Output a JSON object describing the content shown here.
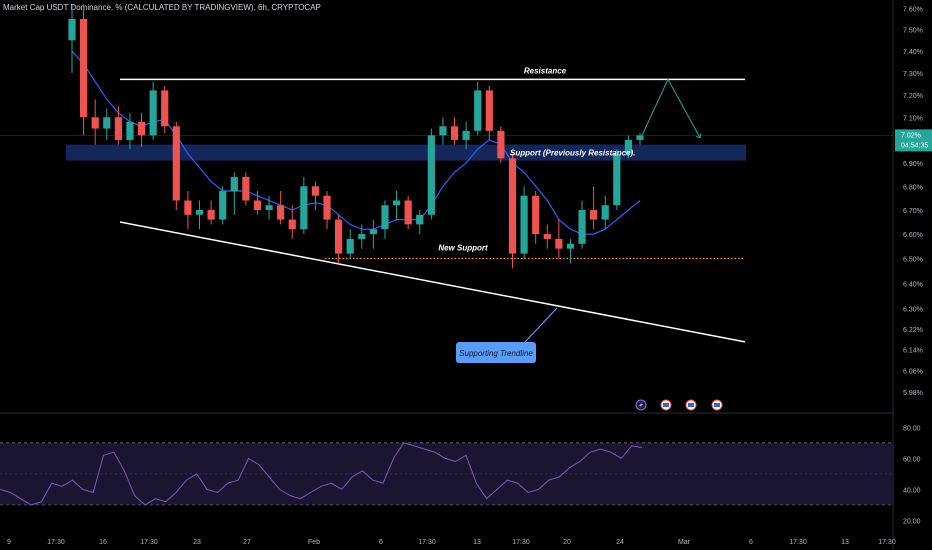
{
  "header": {
    "title": "Market Cap USDT Dominance, % (CALCULATED BY TRADINGVIEW), 6h, CRYPTOCAP"
  },
  "colors": {
    "background": "#000000",
    "up": "#26a69a",
    "down": "#ef5350",
    "moving_average": "#2962ff",
    "support_zone": "#1e3a8a",
    "trendline": "#ffffff",
    "projection": "#26a69a",
    "rsi": "#7e57c2",
    "rsi_band": "#1a1530",
    "callout": "#5b9cf6",
    "price_badge": "#26a69a",
    "axis_text": "#b2b5be"
  },
  "price_badge": {
    "value": "7.02%",
    "countdown": "04:54:35"
  },
  "annotations": {
    "resistance": "Resistance",
    "support_zone": "Support (Previously Resistance).",
    "new_support": "New Support",
    "trendline_callout": "Supporting Trendline"
  },
  "event_icons": [
    "lightning-icon",
    "flag-icon",
    "flag-icon",
    "flag-icon"
  ],
  "chart_data": [
    {
      "type": "candlestick",
      "title": "Market Cap USDT Dominance, % (CALCULATED BY TRADINGVIEW), 6h, CRYPTOCAP",
      "yaxis_scale": "log",
      "yaxis_position": "right",
      "y_ticks": [
        "7.60%",
        "7.50%",
        "7.40%",
        "7.30%",
        "7.20%",
        "7.10%",
        "7.02%",
        "6.90%",
        "6.80%",
        "6.70%",
        "6.60%",
        "6.50%",
        "6.40%",
        "6.30%",
        "6.22%",
        "6.14%",
        "6.06%",
        "5.98%"
      ],
      "x_ticks": [
        "9",
        "17:30",
        "16",
        "17:30",
        "23",
        "27",
        "Feb",
        "6",
        "17:30",
        "13",
        "17:30",
        "20",
        "24",
        "Mar",
        "6",
        "17:30",
        "13",
        "17:30"
      ],
      "candles": [
        {
          "x": "Jan 09",
          "o": 7.45,
          "h": 7.62,
          "l": 7.3,
          "c": 7.55
        },
        {
          "x": "Jan 10",
          "o": 7.55,
          "h": 7.62,
          "l": 7.02,
          "c": 7.1
        },
        {
          "x": "Jan 11",
          "o": 7.1,
          "h": 7.18,
          "l": 6.98,
          "c": 7.05
        },
        {
          "x": "Jan 12",
          "o": 7.05,
          "h": 7.14,
          "l": 7.0,
          "c": 7.1
        },
        {
          "x": "Jan 13",
          "o": 7.1,
          "h": 7.15,
          "l": 6.98,
          "c": 7.0
        },
        {
          "x": "Jan 14",
          "o": 7.0,
          "h": 7.12,
          "l": 6.96,
          "c": 7.08
        },
        {
          "x": "Jan 15",
          "o": 7.08,
          "h": 7.12,
          "l": 6.97,
          "c": 7.02
        },
        {
          "x": "Jan 16",
          "o": 7.02,
          "h": 7.26,
          "l": 7.0,
          "c": 7.22
        },
        {
          "x": "Jan 17",
          "o": 7.22,
          "h": 7.24,
          "l": 7.03,
          "c": 7.06
        },
        {
          "x": "Jan 18",
          "o": 7.06,
          "h": 7.08,
          "l": 6.7,
          "c": 6.74
        },
        {
          "x": "Jan 19",
          "o": 6.74,
          "h": 6.78,
          "l": 6.62,
          "c": 6.68
        },
        {
          "x": "Jan 20",
          "o": 6.68,
          "h": 6.74,
          "l": 6.62,
          "c": 6.7
        },
        {
          "x": "Jan 21",
          "o": 6.7,
          "h": 6.74,
          "l": 6.64,
          "c": 6.66
        },
        {
          "x": "Jan 22",
          "o": 6.66,
          "h": 6.8,
          "l": 6.64,
          "c": 6.78
        },
        {
          "x": "Jan 23",
          "o": 6.78,
          "h": 6.86,
          "l": 6.68,
          "c": 6.84
        },
        {
          "x": "Jan 24",
          "o": 6.84,
          "h": 6.86,
          "l": 6.72,
          "c": 6.74
        },
        {
          "x": "Jan 25",
          "o": 6.74,
          "h": 6.78,
          "l": 6.68,
          "c": 6.7
        },
        {
          "x": "Jan 26",
          "o": 6.7,
          "h": 6.76,
          "l": 6.66,
          "c": 6.72
        },
        {
          "x": "Jan 27",
          "o": 6.72,
          "h": 6.78,
          "l": 6.64,
          "c": 6.66
        },
        {
          "x": "Jan 28",
          "o": 6.66,
          "h": 6.72,
          "l": 6.58,
          "c": 6.62
        },
        {
          "x": "Jan 29",
          "o": 6.62,
          "h": 6.84,
          "l": 6.6,
          "c": 6.8
        },
        {
          "x": "Jan 30",
          "o": 6.8,
          "h": 6.82,
          "l": 6.7,
          "c": 6.76
        },
        {
          "x": "Jan 31",
          "o": 6.76,
          "h": 6.78,
          "l": 6.62,
          "c": 6.66
        },
        {
          "x": "Feb 01",
          "o": 6.66,
          "h": 6.68,
          "l": 6.48,
          "c": 6.52
        },
        {
          "x": "Feb 02",
          "o": 6.52,
          "h": 6.62,
          "l": 6.5,
          "c": 6.58
        },
        {
          "x": "Feb 03",
          "o": 6.58,
          "h": 6.64,
          "l": 6.54,
          "c": 6.6
        },
        {
          "x": "Feb 04",
          "o": 6.6,
          "h": 6.66,
          "l": 6.54,
          "c": 6.62
        },
        {
          "x": "Feb 05",
          "o": 6.62,
          "h": 6.74,
          "l": 6.58,
          "c": 6.72
        },
        {
          "x": "Feb 06",
          "o": 6.72,
          "h": 6.78,
          "l": 6.66,
          "c": 6.74
        },
        {
          "x": "Feb 07",
          "o": 6.74,
          "h": 6.76,
          "l": 6.62,
          "c": 6.64
        },
        {
          "x": "Feb 08",
          "o": 6.64,
          "h": 6.7,
          "l": 6.6,
          "c": 6.68
        },
        {
          "x": "Feb 09",
          "o": 6.68,
          "h": 7.05,
          "l": 6.66,
          "c": 7.02
        },
        {
          "x": "Feb 10",
          "o": 7.02,
          "h": 7.1,
          "l": 6.98,
          "c": 7.06
        },
        {
          "x": "Feb 11",
          "o": 7.06,
          "h": 7.1,
          "l": 6.98,
          "c": 7.0
        },
        {
          "x": "Feb 12",
          "o": 7.0,
          "h": 7.08,
          "l": 6.96,
          "c": 7.04
        },
        {
          "x": "Feb 13",
          "o": 7.04,
          "h": 7.26,
          "l": 7.02,
          "c": 7.22
        },
        {
          "x": "Feb 14",
          "o": 7.22,
          "h": 7.24,
          "l": 7.0,
          "c": 7.04
        },
        {
          "x": "Feb 15",
          "o": 7.04,
          "h": 7.06,
          "l": 6.9,
          "c": 6.92
        },
        {
          "x": "Feb 16",
          "o": 6.92,
          "h": 6.94,
          "l": 6.46,
          "c": 6.52
        },
        {
          "x": "Feb 17",
          "o": 6.52,
          "h": 6.8,
          "l": 6.5,
          "c": 6.76
        },
        {
          "x": "Feb 18",
          "o": 6.76,
          "h": 6.78,
          "l": 6.56,
          "c": 6.6
        },
        {
          "x": "Feb 19",
          "o": 6.6,
          "h": 6.64,
          "l": 6.54,
          "c": 6.58
        },
        {
          "x": "Feb 20",
          "o": 6.58,
          "h": 6.66,
          "l": 6.5,
          "c": 6.54
        },
        {
          "x": "Feb 21",
          "o": 6.54,
          "h": 6.58,
          "l": 6.48,
          "c": 6.56
        },
        {
          "x": "Feb 22",
          "o": 6.56,
          "h": 6.74,
          "l": 6.54,
          "c": 6.7
        },
        {
          "x": "Feb 23",
          "o": 6.7,
          "h": 6.8,
          "l": 6.62,
          "c": 6.66
        },
        {
          "x": "Feb 24",
          "o": 6.66,
          "h": 6.76,
          "l": 6.62,
          "c": 6.72
        },
        {
          "x": "Feb 25",
          "o": 6.72,
          "h": 6.96,
          "l": 6.7,
          "c": 6.94
        },
        {
          "x": "Feb 26",
          "o": 6.94,
          "h": 7.02,
          "l": 6.92,
          "c": 7.0
        },
        {
          "x": "Feb 27",
          "o": 7.0,
          "h": 7.03,
          "l": 6.98,
          "c": 7.02
        }
      ],
      "moving_average": [
        7.4,
        7.34,
        7.26,
        7.18,
        7.12,
        7.08,
        7.06,
        7.08,
        7.09,
        7.02,
        6.94,
        6.88,
        6.82,
        6.78,
        6.78,
        6.78,
        6.76,
        6.74,
        6.72,
        6.7,
        6.72,
        6.73,
        6.72,
        6.68,
        6.64,
        6.62,
        6.62,
        6.64,
        6.66,
        6.66,
        6.66,
        6.72,
        6.8,
        6.86,
        6.9,
        6.96,
        7.0,
        6.98,
        6.9,
        6.86,
        6.8,
        6.74,
        6.66,
        6.62,
        6.6,
        6.6,
        6.62,
        6.66,
        6.7,
        6.74
      ],
      "levels": {
        "resistance": 7.27,
        "support_zone": [
          6.91,
          6.98
        ],
        "new_support": 6.5,
        "supporting_trendline_start": 6.65,
        "supporting_trendline_end": 6.17,
        "projection_peak": 7.27,
        "projection_end": 7.01
      }
    },
    {
      "type": "line",
      "name": "RSI",
      "y_ticks": [
        "80.00",
        "60.00",
        "40.00",
        "20.00"
      ],
      "band": [
        30,
        70
      ],
      "values": [
        40,
        38,
        34,
        30,
        32,
        44,
        42,
        46,
        40,
        38,
        62,
        64,
        52,
        36,
        30,
        34,
        32,
        38,
        46,
        50,
        40,
        38,
        44,
        46,
        60,
        56,
        48,
        40,
        36,
        34,
        38,
        42,
        44,
        40,
        48,
        52,
        46,
        44,
        60,
        70,
        68,
        66,
        64,
        60,
        58,
        62,
        44,
        34,
        40,
        46,
        44,
        38,
        40,
        46,
        48,
        54,
        58,
        64,
        66,
        64,
        60,
        68,
        67
      ]
    }
  ]
}
